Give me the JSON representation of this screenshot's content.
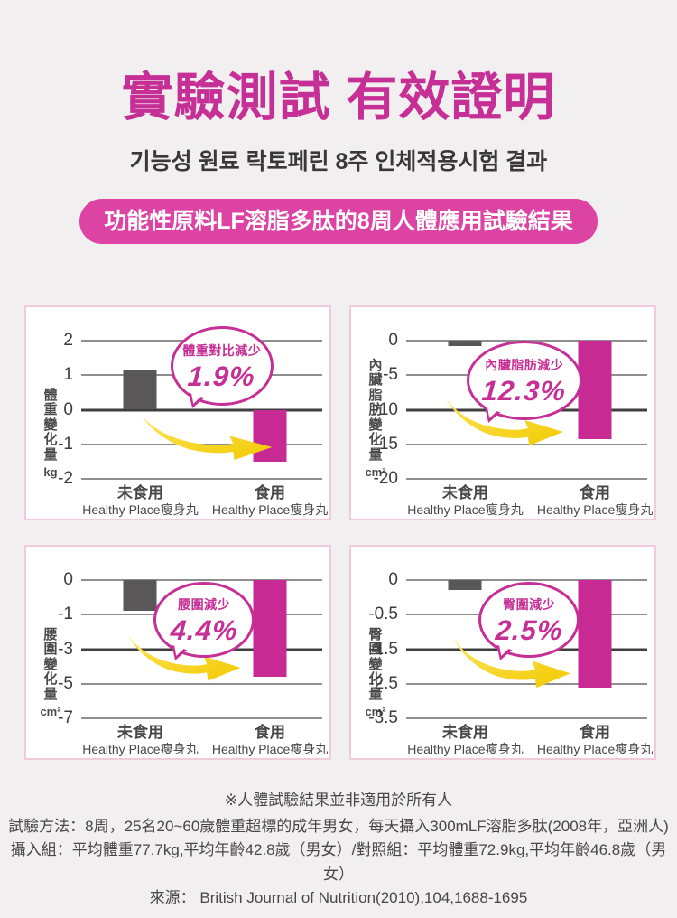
{
  "colors": {
    "page_bg": "#f1eff0",
    "magenta": "#c62f95",
    "banner_bg": "#dc43a2",
    "bar_gray": "#595757",
    "bar_magenta": "#c82a94",
    "grid": "#8f8f8f",
    "grid_bold": "#3f3f3f",
    "panel_border": "#f2cade",
    "arrow_light": "#fce45e",
    "arrow_dark": "#f2ca00",
    "text_dark": "#3c3c3c"
  },
  "header": {
    "title": "實驗測試 有效證明",
    "subtitle": "기능성 원료 락토페린 8주 인체적용시험 결과",
    "banner": "功能性原料LF溶脂多肽的8周人體應用試驗結果"
  },
  "chart_data": [
    {
      "type": "bar",
      "axis_label": "體重變化量",
      "axis_unit": "kg",
      "ticks": [
        2,
        1,
        0,
        -1,
        -2
      ],
      "bold_tick_index": 2,
      "ylim": [
        2,
        -2
      ],
      "grid": true,
      "categories": [
        {
          "line1": "未食用",
          "line2": "Healthy Place瘦身丸"
        },
        {
          "line1": "食用",
          "line2": "Healthy Place瘦身丸"
        }
      ],
      "series": [
        {
          "name": "未食用Healthy Place瘦身丸",
          "value": 1.15
        },
        {
          "name": "食用Healthy Place瘦身丸",
          "value": -1.5
        }
      ],
      "callout": {
        "label": "體重對比減少",
        "pct": "1.9%"
      },
      "layout": {
        "bubble": [
          37,
          -16,
          114,
          88
        ],
        "arrow": [
          22,
          52,
          58,
          34
        ]
      }
    },
    {
      "type": "bar",
      "axis_label": "內臟脂肪變化量",
      "axis_unit": "cm²",
      "ticks": [
        0,
        -5,
        -10,
        -15,
        -20
      ],
      "bold_tick_index": 2,
      "ylim": [
        0,
        -20
      ],
      "grid": true,
      "categories": [
        {
          "line1": "未食用",
          "line2": "Healthy Place瘦身丸"
        },
        {
          "line1": "食用",
          "line2": "Healthy Place瘦身丸"
        }
      ],
      "series": [
        {
          "name": "未食用Healthy Place瘦身丸",
          "value": -0.8
        },
        {
          "name": "食用Healthy Place瘦身丸",
          "value": -14.2
        }
      ],
      "callout": {
        "label": "內臟脂肪減少",
        "pct": "12.3%"
      },
      "layout": {
        "bubble": [
          25,
          0,
          128,
          88
        ],
        "arrow": [
          14,
          40,
          52,
          36
        ]
      }
    },
    {
      "type": "bar",
      "axis_label": "腰圍變化量",
      "axis_unit": "cm²",
      "ticks": [
        0,
        -1,
        -3,
        -5,
        -7
      ],
      "bold_tick_index": 2,
      "ylim": [
        0,
        -7
      ],
      "grid": true,
      "categories": [
        {
          "line1": "未食用",
          "line2": "Healthy Place瘦身丸"
        },
        {
          "line1": "食用",
          "line2": "Healthy Place瘦身丸"
        }
      ],
      "series": [
        {
          "name": "未食用Healthy Place瘦身丸",
          "value": -0.9
        },
        {
          "name": "食用Healthy Place瘦身丸",
          "value": -4.6
        }
      ],
      "callout": {
        "label": "腰圍減少",
        "pct": "4.4%"
      },
      "layout": {
        "bubble": [
          30,
          2,
          112,
          84
        ],
        "arrow": [
          17,
          38,
          50,
          35
        ]
      }
    },
    {
      "type": "bar",
      "axis_label": "臀圍變化量",
      "axis_unit": "cm²",
      "ticks": [
        0,
        -0.5,
        -1.5,
        -2.5,
        -3.5
      ],
      "bold_tick_index": 2,
      "ylim": [
        0,
        -3.5
      ],
      "grid": true,
      "categories": [
        {
          "line1": "未食用",
          "line2": "Healthy Place瘦身丸"
        },
        {
          "line1": "食用",
          "line2": "Healthy Place瘦身丸"
        }
      ],
      "series": [
        {
          "name": "未食用Healthy Place瘦身丸",
          "value": -0.15
        },
        {
          "name": "食用Healthy Place瘦身丸",
          "value": -2.6
        }
      ],
      "callout": {
        "label": "臀圍減少",
        "pct": "2.5%"
      },
      "layout": {
        "bubble": [
          30,
          2,
          112,
          84
        ],
        "arrow": [
          17,
          40,
          52,
          38
        ]
      }
    }
  ],
  "footnotes": [
    "※人體試驗結果並非適用於所有人",
    "試驗方法：8周，25名20~60歲體重超標的成年男女，每天攝入300mLF溶脂多肽(2008年，亞洲人)",
    "攝入組：平均體重77.7kg,平均年齡42.8歲（男女）/對照組：平均體重72.9kg,平均年齡46.8歲（男女）",
    "來源： British Journal of Nutrition(2010),104,1688-1695"
  ]
}
